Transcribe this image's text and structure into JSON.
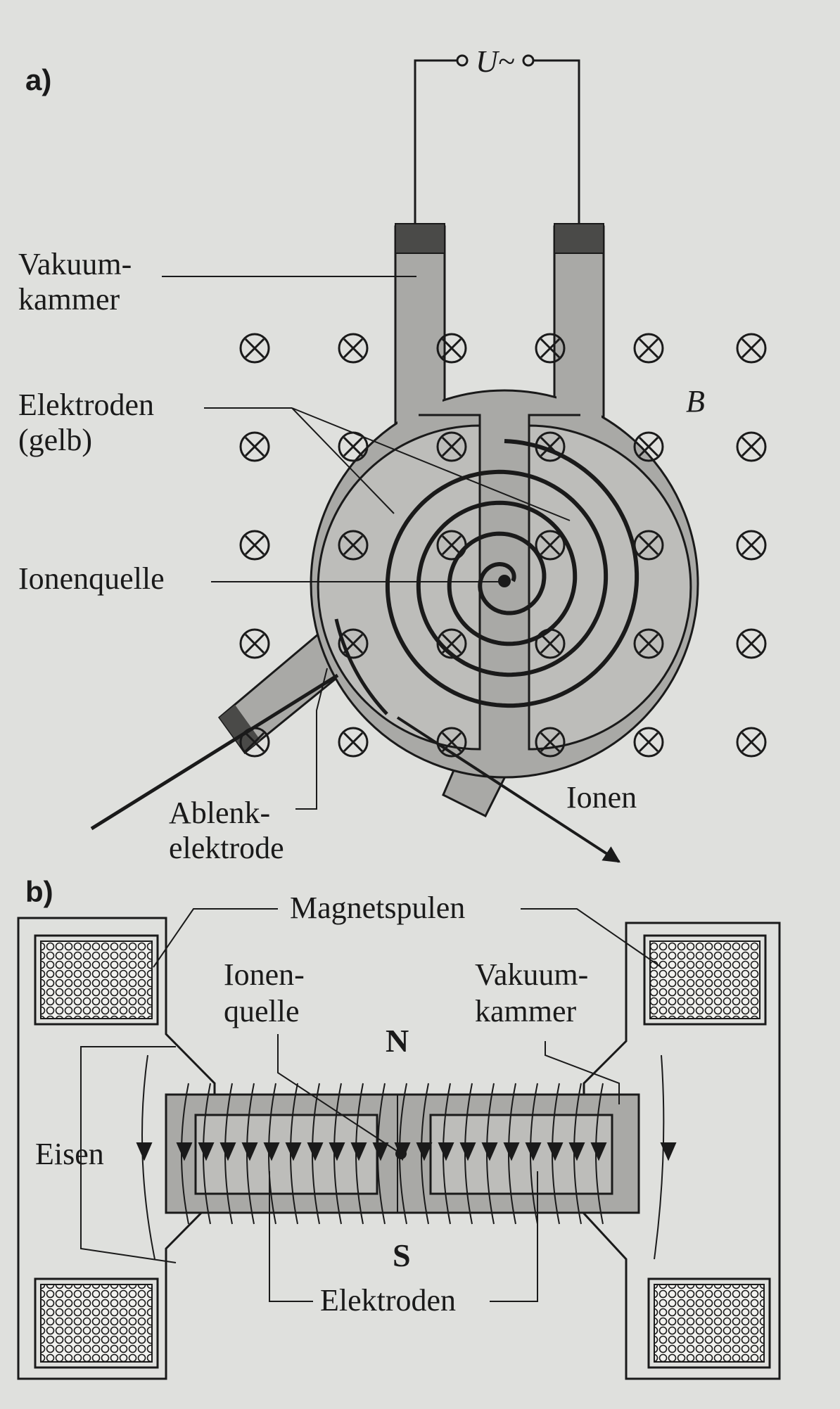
{
  "panel_a": {
    "letter": "a)",
    "voltage": "U~",
    "field": "B",
    "label_vacuum_1": "Vakuum-",
    "label_vacuum_2": "kammer",
    "label_electrodes_1": "Elektroden",
    "label_electrodes_2": "(gelb)",
    "label_ion_source": "Ionenquelle",
    "label_deflect_1": "Ablenk-",
    "label_deflect_2": "elektrode",
    "label_ions": "Ionen"
  },
  "panel_b": {
    "letter": "b)",
    "label_coils": "Magnetspulen",
    "label_ion_source_1": "Ionen-",
    "label_ion_source_2": "quelle",
    "label_vacuum_1": "Vakuum-",
    "label_vacuum_2": "kammer",
    "label_north": "N",
    "label_south": "S",
    "label_iron": "Eisen",
    "label_electrodes": "Elektroden"
  },
  "colors": {
    "background": "#dfe0dd",
    "ink": "#1a1a1a",
    "chamber_fill": "#a9a9a6",
    "electrode_fill": "#bdbdba",
    "cap_fill": "#4a4a48"
  }
}
